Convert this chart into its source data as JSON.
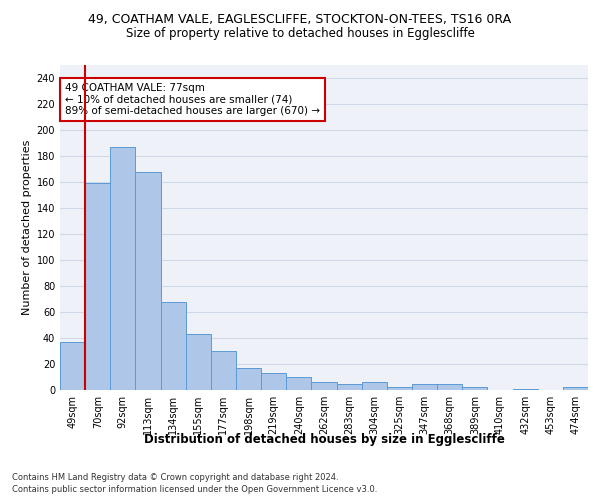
{
  "title_line1": "49, COATHAM VALE, EAGLESCLIFFE, STOCKTON-ON-TEES, TS16 0RA",
  "title_line2": "Size of property relative to detached houses in Egglescliffe",
  "xlabel": "Distribution of detached houses by size in Egglescliffe",
  "ylabel": "Number of detached properties",
  "categories": [
    "49sqm",
    "70sqm",
    "92sqm",
    "113sqm",
    "134sqm",
    "155sqm",
    "177sqm",
    "198sqm",
    "219sqm",
    "240sqm",
    "262sqm",
    "283sqm",
    "304sqm",
    "325sqm",
    "347sqm",
    "368sqm",
    "389sqm",
    "410sqm",
    "432sqm",
    "453sqm",
    "474sqm"
  ],
  "values": [
    37,
    159,
    187,
    168,
    68,
    43,
    30,
    17,
    13,
    10,
    6,
    5,
    6,
    2,
    5,
    5,
    2,
    0,
    1,
    0,
    2
  ],
  "bar_color": "#aec6e8",
  "bar_edge_color": "#5b9bd5",
  "vline_color": "#cc0000",
  "annotation_text": "49 COATHAM VALE: 77sqm\n← 10% of detached houses are smaller (74)\n89% of semi-detached houses are larger (670) →",
  "annotation_box_color": "#ffffff",
  "annotation_box_edge": "#cc0000",
  "ylim": [
    0,
    250
  ],
  "yticks": [
    0,
    20,
    40,
    60,
    80,
    100,
    120,
    140,
    160,
    180,
    200,
    220,
    240
  ],
  "grid_color": "#d0d8e8",
  "background_color": "#eef2f8",
  "footer_line1": "Contains HM Land Registry data © Crown copyright and database right 2024.",
  "footer_line2": "Contains public sector information licensed under the Open Government Licence v3.0.",
  "title_fontsize": 9,
  "subtitle_fontsize": 8.5,
  "ylabel_fontsize": 8,
  "xlabel_fontsize": 8.5,
  "tick_fontsize": 7,
  "annotation_fontsize": 7.5,
  "footer_fontsize": 6
}
